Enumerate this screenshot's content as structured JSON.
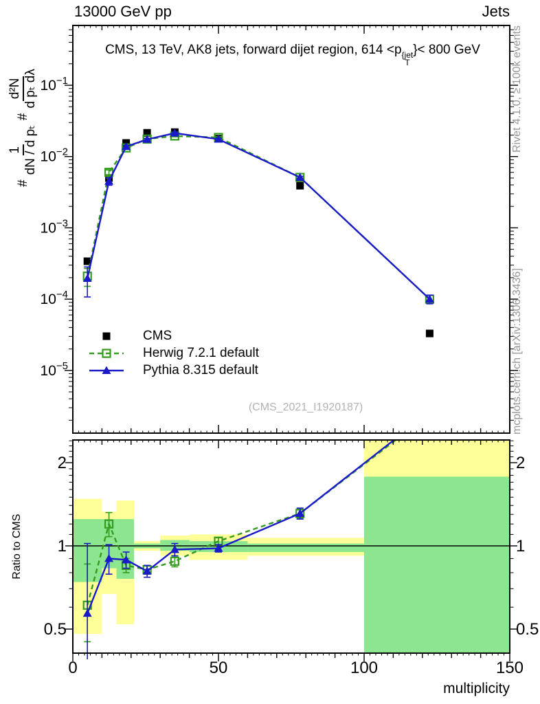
{
  "header": {
    "left": "13000 GeV pp",
    "right": "Jets"
  },
  "main_panel": {
    "title": {
      "prefix": "CMS, 13 TeV, AK8 jets, forward dijet region, 614 <p",
      "sup": "{jet",
      "sub": "T",
      "suffix": "}< 800 GeV"
    },
    "ylabel": {
      "hash": "#",
      "hash2": "#",
      "frac1": {
        "num": "1",
        "den": "dN / d pₜ"
      },
      "frac2": {
        "num": "d²N",
        "den": "d pₜ dλ"
      }
    }
  },
  "ratio_panel": {
    "ylabel": "Ratio to CMS"
  },
  "xaxis": {
    "label": "multiplicity"
  },
  "watermark": {
    "text": "(CMS_2021_I1920187)"
  },
  "side_notes": {
    "rivet": "Rivet 4.1.0, ≥ 100k events",
    "mcplots": "mcplots.cern.ch [arXiv:1306.3436]"
  },
  "colors": {
    "cms": "#000000",
    "herwig": "#339b1e",
    "pythia": "#1a1ac8",
    "band_yellow": "#ffff99",
    "band_green": "#8ce690",
    "gray_text": "#969696",
    "watermark": "#b2b2b2"
  },
  "chart_data": {
    "type": "line",
    "title": "CMS, 13 TeV, AK8 jets, forward dijet region, 614 < pT{jet} < 800 GeV",
    "xlabel": "multiplicity",
    "ylabel": "# 1/(dN/dpT) # d2N/(dpT dlambda)",
    "xlim": [
      0,
      150
    ],
    "xticks_labeled": [
      0,
      50,
      100,
      150
    ],
    "ylog": true,
    "ylim_main": [
      1.3e-06,
      0.69
    ],
    "y_decades": [
      -1,
      -2,
      -3,
      -4,
      -5
    ],
    "bin_edges": [
      0,
      10,
      15,
      21,
      30,
      40,
      60,
      100,
      150
    ],
    "x": [
      5,
      12.4,
      18.3,
      25.5,
      35,
      50,
      78,
      122.5
    ],
    "series": [
      {
        "name": "CMS",
        "colorKey": "cms",
        "marker": "square-filled",
        "line": "none",
        "values": [
          0.00034,
          0.005,
          0.0155,
          0.0215,
          0.022,
          0.0178,
          0.0039,
          3.3e-05
        ]
      },
      {
        "name": "Herwig 7.2.1 default",
        "colorKey": "herwig",
        "marker": "square-open",
        "line": "dashed",
        "values": [
          0.00021,
          0.006,
          0.0132,
          0.0176,
          0.0194,
          0.0185,
          0.0051,
          0.0001
        ],
        "err_frac": [
          0.28,
          0.08,
          0.03,
          0.025,
          0.025,
          0.025,
          0.03,
          0.13
        ],
        "ratio": [
          0.61,
          1.2,
          0.85,
          0.82,
          0.88,
          1.04,
          1.31,
          3.0
        ],
        "ratio_err": [
          [
            0.16,
            0.25
          ],
          [
            0.12,
            0.12
          ],
          [
            0.05,
            0.05
          ],
          [
            0.03,
            0.03
          ],
          [
            0.04,
            0.04
          ],
          [
            0.03,
            0.03
          ],
          [
            0.05,
            0.05
          ],
          [
            0,
            0
          ]
        ]
      },
      {
        "name": "Pythia 8.315 default",
        "colorKey": "pythia",
        "marker": "triangle-filled",
        "line": "solid",
        "values": [
          0.000195,
          0.0045,
          0.0138,
          0.0174,
          0.0213,
          0.0175,
          0.0051,
          0.0001
        ],
        "err_frac": [
          0.45,
          0.12,
          0.04,
          0.03,
          0.035,
          0.025,
          0.035,
          0.14
        ],
        "ratio": [
          0.57,
          0.9,
          0.89,
          0.81,
          0.97,
          0.98,
          1.31,
          3.05
        ],
        "ratio_err": [
          [
            0.35,
            0.45
          ],
          [
            0.11,
            0.11
          ],
          [
            0.06,
            0.06
          ],
          [
            0.04,
            0.04
          ],
          [
            0.05,
            0.05
          ],
          [
            0.03,
            0.03
          ],
          [
            0.06,
            0.06
          ],
          [
            0,
            0
          ]
        ]
      }
    ],
    "ratio": {
      "ylabel": "Ratio to CMS",
      "ylog": true,
      "ylim": [
        0.41,
        2.42
      ],
      "yticks_labeled": [
        2,
        1,
        0.5
      ],
      "bands": [
        {
          "x0": 0,
          "x1": 10,
          "yellow": [
            0.48,
            1.48
          ],
          "green": [
            0.74,
            1.25
          ]
        },
        {
          "x0": 10,
          "x1": 15,
          "yellow": [
            0.67,
            1.33
          ],
          "green": [
            0.83,
            1.25
          ]
        },
        {
          "x0": 15,
          "x1": 21,
          "yellow": [
            0.52,
            1.46
          ],
          "green": [
            0.76,
            1.25
          ]
        },
        {
          "x0": 21,
          "x1": 30,
          "yellow": [
            0.96,
            1.04
          ],
          "green": [
            0.98,
            1.02
          ]
        },
        {
          "x0": 30,
          "x1": 40,
          "yellow": [
            0.92,
            1.09
          ],
          "green": [
            0.96,
            1.05
          ]
        },
        {
          "x0": 40,
          "x1": 60,
          "yellow": [
            0.89,
            1.1
          ],
          "green": [
            0.95,
            1.04
          ]
        },
        {
          "x0": 60,
          "x1": 100,
          "yellow": [
            0.92,
            1.07
          ],
          "green": [
            0.95,
            1.02
          ]
        },
        {
          "x0": 100,
          "x1": 150,
          "yellow": [
            0.4,
            2.45
          ],
          "green": [
            0.4,
            1.78
          ]
        }
      ]
    }
  }
}
